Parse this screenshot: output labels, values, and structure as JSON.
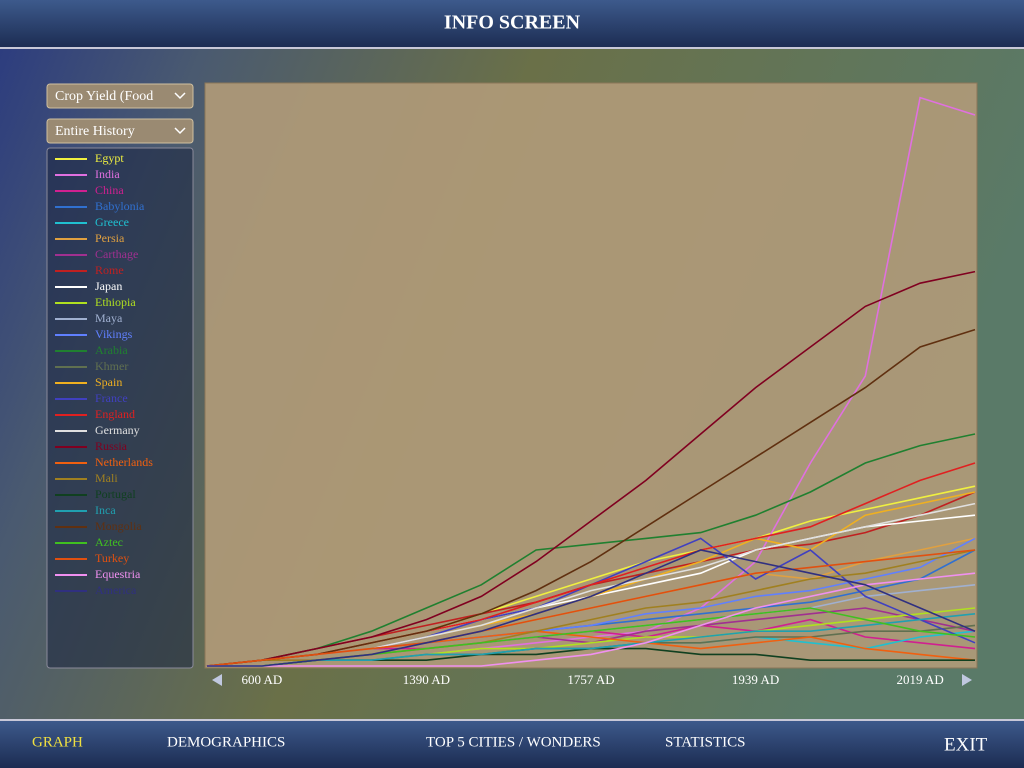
{
  "header": {
    "title": "INFO SCREEN"
  },
  "controls": {
    "dropdowns": [
      "Crop Yield (Food",
      "Entire History"
    ]
  },
  "chart_data": {
    "type": "line",
    "categories": [
      null,
      "600 AD",
      null,
      null,
      "1390 AD",
      null,
      null,
      "1757 AD",
      null,
      null,
      "1939 AD",
      null,
      null,
      "2019 AD",
      null
    ],
    "ylim": [
      0,
      100
    ],
    "series": [
      {
        "name": "Egypt",
        "color": "#f0f040",
        "values": [
          0,
          1,
          2,
          4,
          6,
          9,
          12,
          15,
          18,
          20,
          22,
          25,
          27,
          29,
          31
        ]
      },
      {
        "name": "India",
        "color": "#e070e0",
        "values": [
          0,
          0,
          1,
          1,
          2,
          3,
          4,
          5,
          6,
          10,
          18,
          35,
          50,
          98,
          95
        ]
      },
      {
        "name": "China",
        "color": "#d02090",
        "values": [
          0,
          1,
          2,
          3,
          3,
          4,
          5,
          6,
          5,
          7,
          6,
          8,
          5,
          4,
          3
        ]
      },
      {
        "name": "Babylonia",
        "color": "#3070d0",
        "values": [
          0,
          1,
          2,
          3,
          4,
          5,
          6,
          7,
          8,
          9,
          10,
          11,
          13,
          15,
          20
        ]
      },
      {
        "name": "Greece",
        "color": "#20c0d0",
        "values": [
          0,
          0,
          1,
          1,
          2,
          2,
          3,
          3,
          4,
          4,
          5,
          4,
          3,
          5,
          6
        ]
      },
      {
        "name": "Persia",
        "color": "#e0a040",
        "values": [
          0,
          1,
          2,
          3,
          4,
          6,
          8,
          10,
          12,
          14,
          16,
          15,
          18,
          20,
          22
        ]
      },
      {
        "name": "Carthage",
        "color": "#a03090",
        "values": [
          0,
          1,
          1,
          2,
          3,
          4,
          5,
          4,
          6,
          7,
          8,
          9,
          10,
          8,
          6
        ]
      },
      {
        "name": "Rome",
        "color": "#c02020",
        "values": [
          0,
          1,
          3,
          5,
          7,
          9,
          11,
          14,
          16,
          18,
          20,
          21,
          23,
          26,
          30
        ]
      },
      {
        "name": "Japan",
        "color": "#ffffff",
        "values": [
          0,
          1,
          2,
          4,
          6,
          8,
          10,
          12,
          14,
          16,
          20,
          22,
          24,
          25,
          26
        ]
      },
      {
        "name": "Ethiopia",
        "color": "#b0e020",
        "values": [
          0,
          0,
          1,
          1,
          2,
          3,
          3,
          4,
          5,
          5,
          6,
          7,
          8,
          9,
          10
        ]
      },
      {
        "name": "Maya",
        "color": "#a0b0d0",
        "values": [
          0,
          1,
          1,
          2,
          3,
          4,
          5,
          6,
          7,
          8,
          9,
          10,
          12,
          13,
          14
        ]
      },
      {
        "name": "Vikings",
        "color": "#6080ff",
        "values": [
          0,
          1,
          2,
          3,
          4,
          5,
          6,
          7,
          9,
          10,
          12,
          13,
          15,
          17,
          22
        ]
      },
      {
        "name": "Arabia",
        "color": "#208030",
        "values": [
          0,
          1,
          3,
          6,
          10,
          14,
          20,
          21,
          22,
          23,
          26,
          30,
          35,
          38,
          40
        ]
      },
      {
        "name": "Khmer",
        "color": "#607050",
        "values": [
          0,
          0,
          1,
          1,
          2,
          2,
          3,
          3,
          4,
          4,
          5,
          5,
          6,
          6,
          7
        ]
      },
      {
        "name": "Spain",
        "color": "#f0b020",
        "values": [
          0,
          1,
          2,
          3,
          5,
          7,
          9,
          12,
          15,
          18,
          22,
          20,
          26,
          28,
          30
        ]
      },
      {
        "name": "France",
        "color": "#4040c0",
        "values": [
          0,
          1,
          2,
          3,
          5,
          8,
          10,
          14,
          18,
          22,
          15,
          20,
          12,
          8,
          4
        ]
      },
      {
        "name": "England",
        "color": "#e02020",
        "values": [
          0,
          1,
          2,
          4,
          6,
          8,
          11,
          14,
          17,
          20,
          22,
          24,
          28,
          32,
          35
        ]
      },
      {
        "name": "Germany",
        "color": "#e0e0e0",
        "values": [
          0,
          1,
          2,
          3,
          5,
          7,
          10,
          13,
          15,
          17,
          20,
          22,
          24,
          26,
          28
        ]
      },
      {
        "name": "Russia",
        "color": "#800020",
        "values": [
          0,
          1,
          3,
          5,
          8,
          12,
          18,
          25,
          32,
          40,
          48,
          55,
          62,
          66,
          68
        ]
      },
      {
        "name": "Netherlands",
        "color": "#f06010",
        "values": [
          0,
          1,
          2,
          3,
          4,
          5,
          6,
          5,
          4,
          3,
          4,
          5,
          3,
          2,
          1
        ]
      },
      {
        "name": "Mali",
        "color": "#a08020",
        "values": [
          0,
          1,
          1,
          2,
          3,
          4,
          6,
          8,
          10,
          11,
          13,
          15,
          16,
          18,
          20
        ]
      },
      {
        "name": "Portugal",
        "color": "#104020",
        "values": [
          0,
          0,
          1,
          1,
          1,
          2,
          2,
          3,
          3,
          2,
          2,
          1,
          1,
          1,
          1
        ]
      },
      {
        "name": "Inca",
        "color": "#20a0b0",
        "values": [
          0,
          0,
          1,
          1,
          2,
          2,
          3,
          3,
          4,
          5,
          6,
          6,
          7,
          8,
          9
        ]
      },
      {
        "name": "Mongolia",
        "color": "#603010",
        "values": [
          0,
          1,
          2,
          4,
          6,
          9,
          13,
          18,
          24,
          30,
          36,
          42,
          48,
          55,
          58
        ]
      },
      {
        "name": "Aztec",
        "color": "#40c020",
        "values": [
          0,
          0,
          1,
          2,
          3,
          4,
          5,
          6,
          7,
          8,
          9,
          10,
          8,
          6,
          5
        ]
      },
      {
        "name": "Turkey",
        "color": "#e05010",
        "values": [
          0,
          1,
          2,
          3,
          4,
          6,
          8,
          10,
          12,
          14,
          16,
          17,
          18,
          19,
          20
        ]
      },
      {
        "name": "Equestria",
        "color": "#f090f0",
        "values": [
          0,
          0,
          0,
          0,
          0,
          0,
          1,
          2,
          4,
          7,
          10,
          12,
          14,
          15,
          16
        ]
      },
      {
        "name": "America",
        "color": "#303080",
        "values": [
          0,
          0,
          1,
          2,
          4,
          6,
          9,
          12,
          16,
          20,
          18,
          16,
          14,
          10,
          6
        ]
      }
    ]
  },
  "tabs": [
    "GRAPH",
    "DEMOGRAPHICS",
    "TOP 5 CITIES / WONDERS",
    "STATISTICS"
  ],
  "exit": "EXIT"
}
